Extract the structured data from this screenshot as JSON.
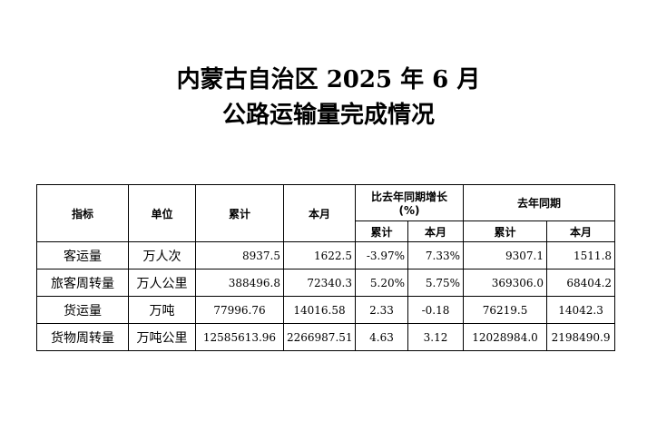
{
  "title": {
    "line1": "内蒙古自治区 2025 年 6 月",
    "line2": "公路运输量完成情况"
  },
  "table": {
    "headers": {
      "indicator": "指标",
      "unit": "单位",
      "cumulative": "累计",
      "month": "本月",
      "growth": "比去年同期增长",
      "growth_unit": "(%)",
      "last_year": "去年同期",
      "sub_cumulative": "累计",
      "sub_month": "本月",
      "sub_cumulative2": "累计",
      "sub_month2": "本月"
    },
    "rows": [
      {
        "indicator": "客运量",
        "unit": "万人次",
        "cumulative": "8937.5",
        "month": "1622.5",
        "growth_cumulative": "-3.97%",
        "growth_month": "7.33%",
        "ly_cumulative": "9307.1",
        "ly_month": "1511.8"
      },
      {
        "indicator": "旅客周转量",
        "unit": "万人公里",
        "cumulative": "388496.8",
        "month": "72340.3",
        "growth_cumulative": "5.20%",
        "growth_month": "5.75%",
        "ly_cumulative": "369306.0",
        "ly_month": "68404.2"
      },
      {
        "indicator": "货运量",
        "unit": "万吨",
        "cumulative": "77996.76",
        "month": "14016.58",
        "growth_cumulative": "2.33",
        "growth_month": "-0.18",
        "ly_cumulative": "76219.5",
        "ly_month": "14042.3"
      },
      {
        "indicator": "货物周转量",
        "unit": "万吨公里",
        "cumulative": "12585613.96",
        "month": "2266987.51",
        "growth_cumulative": "4.63",
        "growth_month": "3.12",
        "ly_cumulative": "12028984.0",
        "ly_month": "2198490.9"
      }
    ]
  }
}
